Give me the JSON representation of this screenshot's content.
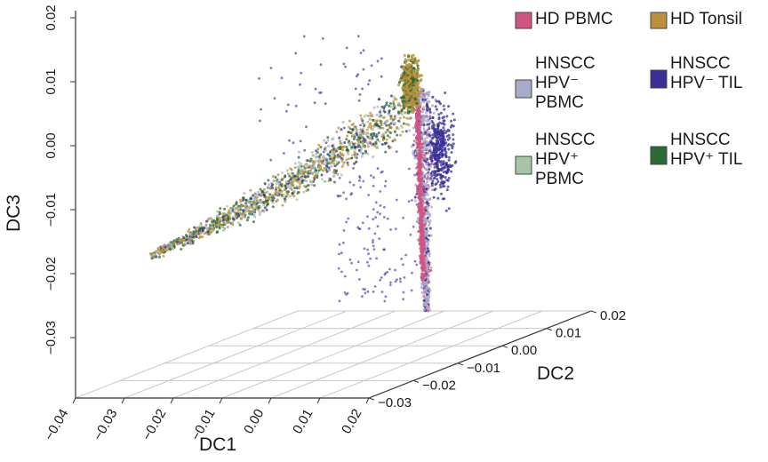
{
  "chart_data": {
    "type": "scatter",
    "projection": "3d",
    "title": "",
    "axes": {
      "x": {
        "label": "DC1",
        "ticks": [
          "−0.04",
          "−0.03",
          "−0.02",
          "−0.01",
          "0.00",
          "0.01",
          "0.02"
        ],
        "range": [
          -0.04,
          0.02
        ]
      },
      "y": {
        "label": "DC2",
        "ticks": [
          "−0.03",
          "−0.02",
          "−0.01",
          "0.00",
          "0.01",
          "0.02"
        ],
        "range": [
          -0.03,
          0.02
        ]
      },
      "z": {
        "label": "DC3",
        "ticks": [
          "0.02",
          "0.01",
          "0.00",
          "−0.01",
          "−0.02",
          "−0.03"
        ],
        "range": [
          -0.03,
          0.02
        ]
      }
    },
    "grid": true,
    "legend_position": "top-right",
    "series": [
      {
        "name_lines": [
          "HD PBMC"
        ],
        "color": "#d05582"
      },
      {
        "name_lines": [
          "HD Tonsil"
        ],
        "color": "#b8913a"
      },
      {
        "name_lines": [
          "HNSCC",
          "HPV⁻",
          "PBMC"
        ],
        "color": "#aaaacc"
      },
      {
        "name_lines": [
          "HNSCC",
          "HPV⁻ TIL"
        ],
        "color": "#3a2f96"
      },
      {
        "name_lines": [
          "HNSCC",
          "HPV⁺",
          "PBMC"
        ],
        "color": "#a8c4a8"
      },
      {
        "name_lines": [
          "HNSCC",
          "HPV⁺ TIL"
        ],
        "color": "#2a6a34"
      }
    ]
  }
}
